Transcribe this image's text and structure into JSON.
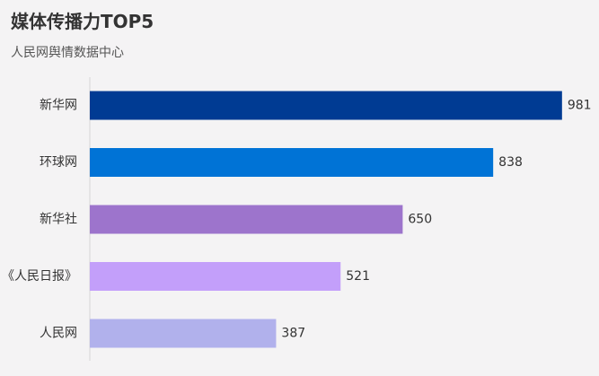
{
  "chart_data": {
    "type": "bar",
    "orientation": "horizontal",
    "title": "媒体传播力TOP5",
    "subtitle": "人民网舆情数据中心",
    "categories": [
      "新华网",
      "环球网",
      "新华社",
      "《人民日报》",
      "人民网"
    ],
    "values": [
      981,
      838,
      650,
      521,
      387
    ],
    "colors": [
      "#003b93",
      "#0073d6",
      "#9d74cc",
      "#c39ffa",
      "#b1b1ec"
    ],
    "xlim": [
      0,
      1000
    ],
    "grid": false,
    "legend": "none"
  }
}
